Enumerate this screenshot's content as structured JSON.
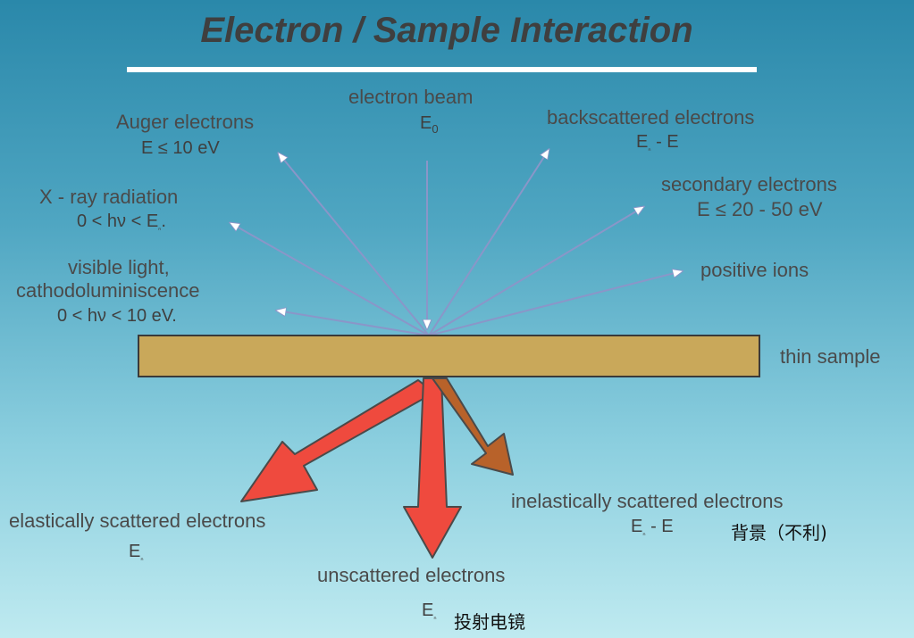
{
  "title": "Electron / Sample Interaction",
  "top_labels": {
    "electron_beam": {
      "name": "electron beam",
      "energy": "E",
      "energy_sub": "0"
    },
    "auger": {
      "name": "Auger electrons",
      "energy": "E ≤  10 eV"
    },
    "backscattered": {
      "name": "backscattered electrons",
      "energy_a": "E",
      "energy_sep": " -  E"
    },
    "xray": {
      "name": "X - ray radiation",
      "energy_a": "0 < hν < E",
      "energy_end": "."
    },
    "secondary": {
      "name": "secondary electrons",
      "energy": "E ≤  20 - 50 eV"
    },
    "visible_light": {
      "line1": "visible light,",
      "line2": "cathodoluminiscence",
      "energy": "0 < hν < 10 eV."
    },
    "positive_ions": {
      "name": "positive ions"
    }
  },
  "sample": {
    "label": "thin sample",
    "color": "#c9a85a"
  },
  "bottom_labels": {
    "elastic": {
      "name": "elastically scattered electrons",
      "energy": "E"
    },
    "unscattered": {
      "name": "unscattered electrons",
      "energy": "E",
      "note": "投射电镜"
    },
    "inelastic": {
      "name": "inelastically scattered electrons",
      "energy_a": "E",
      "energy_sep": " -  E",
      "note": "背景（不利)"
    }
  },
  "colors": {
    "thin_arrow": "#8a96c8",
    "red_arrow": "#ef4a3e",
    "brown_arrow": "#b8622a",
    "rule": "#ffffff"
  }
}
